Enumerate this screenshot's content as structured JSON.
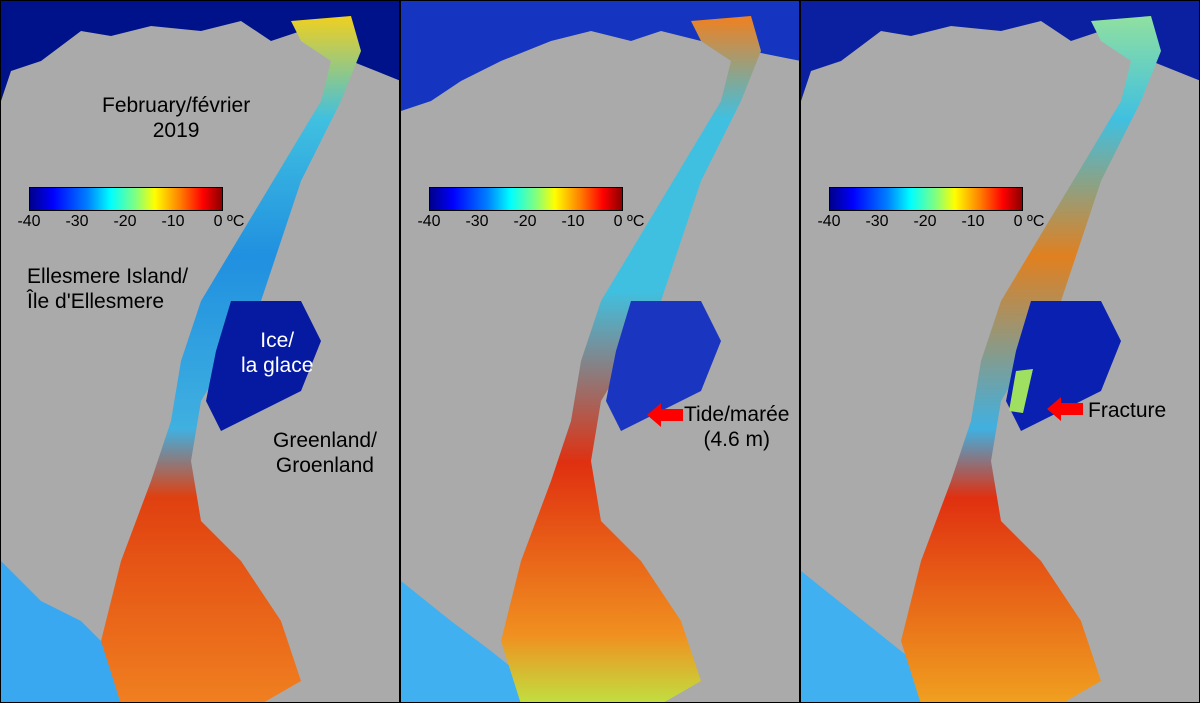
{
  "panels": [
    {
      "id": "panel-1",
      "labels": {
        "date_line1": "February/février",
        "date_line2": "2019",
        "ellesmere_line1": "Ellesmere Island/",
        "ellesmere_line2": "Île d'Ellesmere",
        "ice_line1": "Ice/",
        "ice_line2": "la glace",
        "greenland_line1": "Greenland/",
        "greenland_line2": "Groenland"
      }
    },
    {
      "id": "panel-2",
      "labels": {
        "annotation_line1": "Tide/marée",
        "annotation_line2": "(4.6 m)"
      }
    },
    {
      "id": "panel-3",
      "labels": {
        "annotation_line1": "Fracture"
      }
    }
  ],
  "colorbar": {
    "ticks": [
      "-40",
      "-30",
      "-20",
      "-10",
      "0 ºC"
    ],
    "min": -40,
    "max": 0,
    "unit": "ºC"
  },
  "colors": {
    "land": "#aaaaaa",
    "background": "#000000",
    "arrow": "#ff0000",
    "cold": "#00008b",
    "warm": "#8b0000"
  }
}
